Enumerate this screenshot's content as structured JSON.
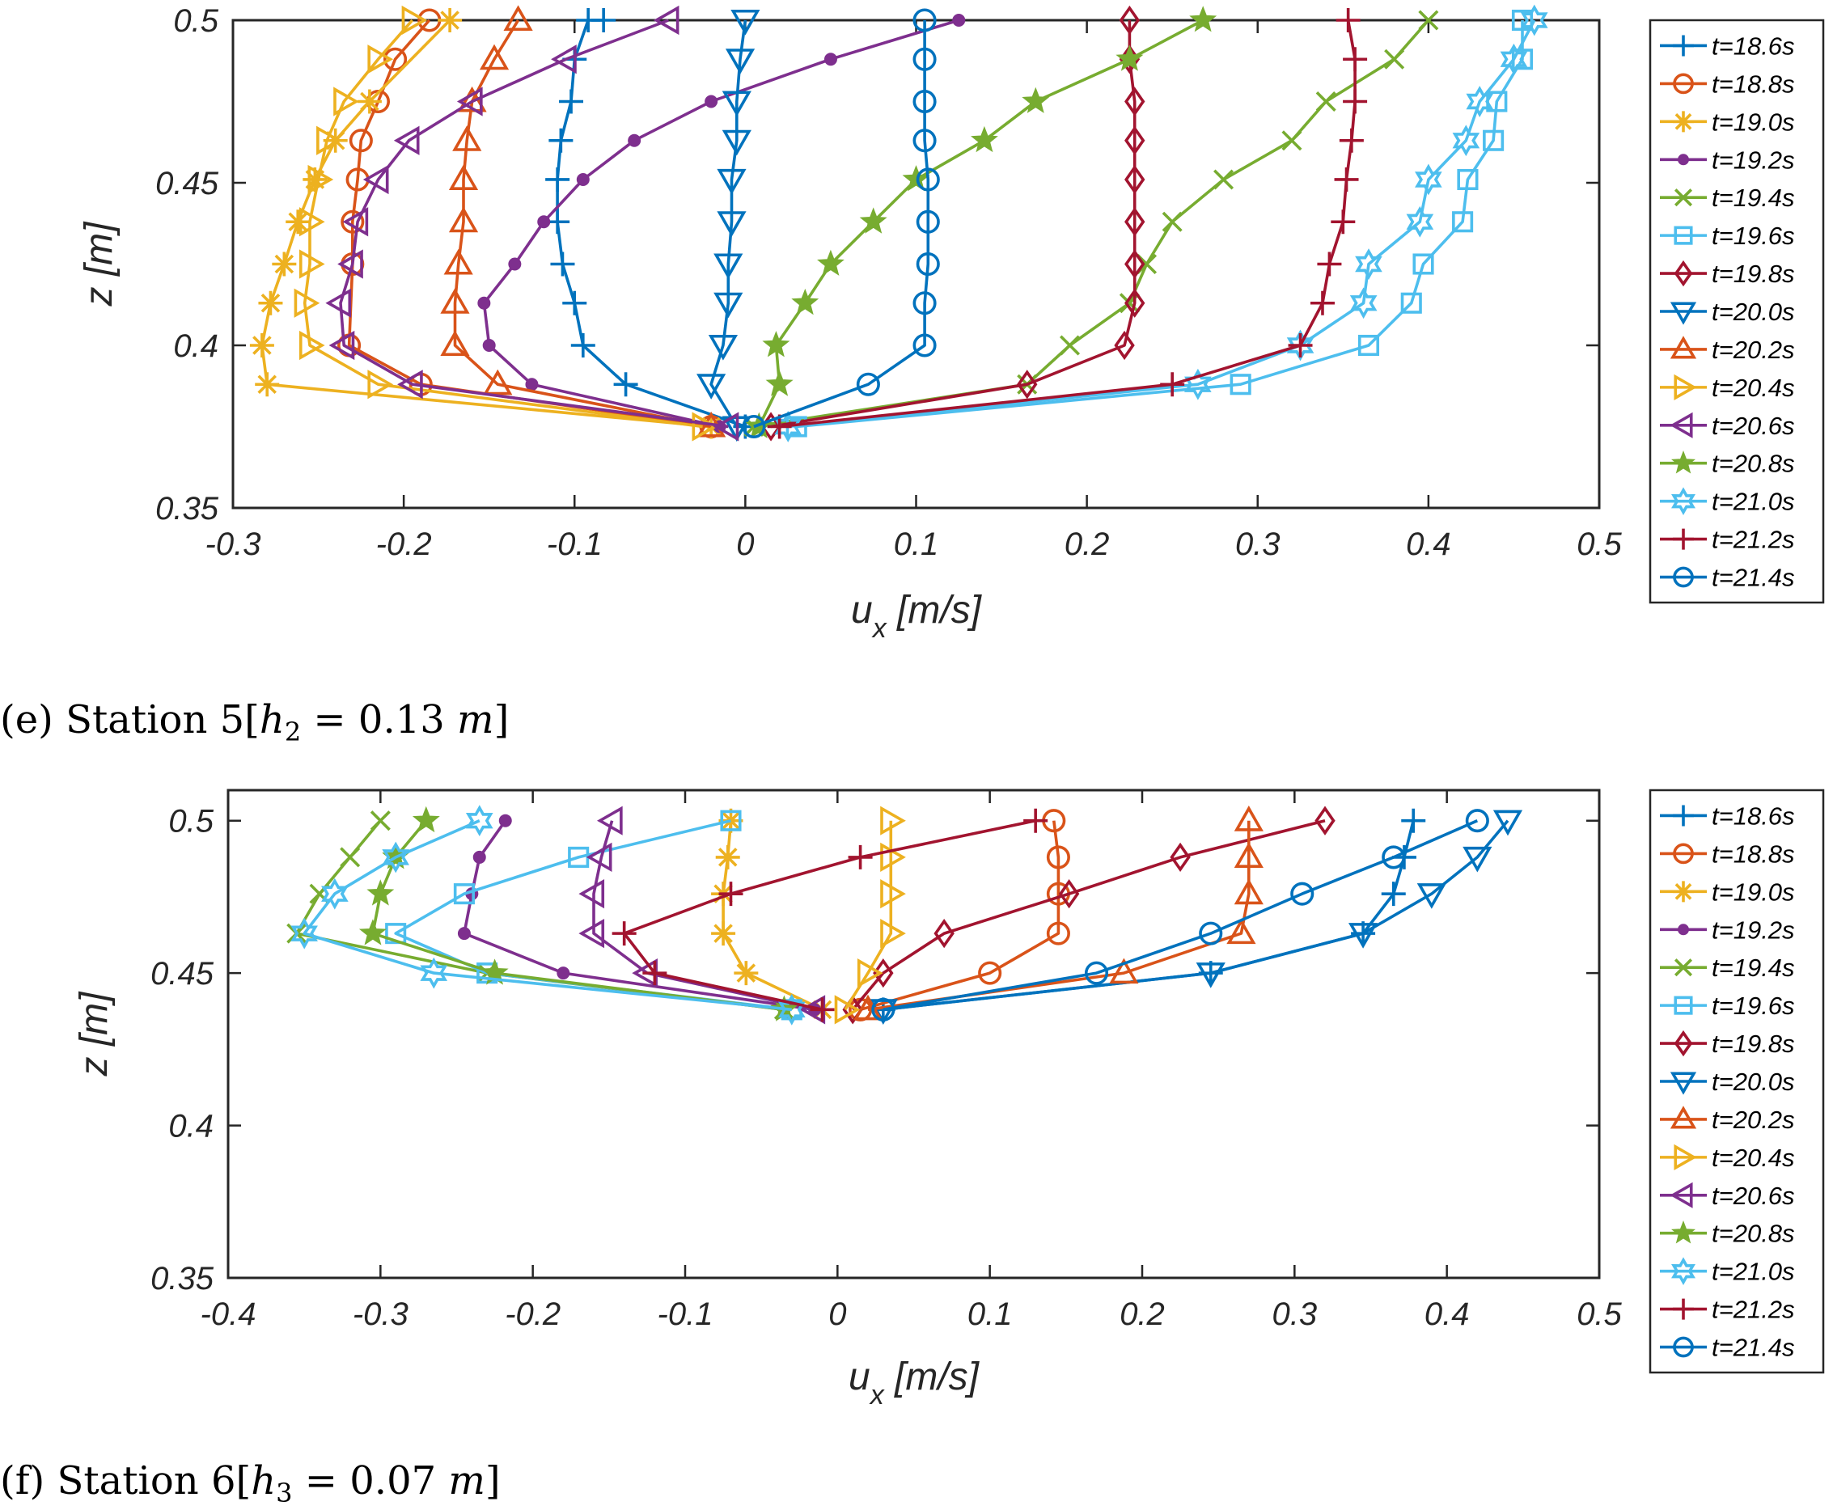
{
  "captions": [
    {
      "prefix": "(e) Station 5[",
      "var": "h",
      "sub": "2",
      "eq": " = 0.13 ",
      "unit": "m",
      "suffix": "]"
    },
    {
      "prefix": "(f) Station 6[",
      "var": "h",
      "sub": "3",
      "eq": " = 0.07 ",
      "unit": "m",
      "suffix": "]"
    }
  ],
  "chart_data": [
    {
      "type": "line",
      "xlabel": "u_x [m/s]",
      "ylabel": "z [m]",
      "xlim": [
        -0.3,
        0.5
      ],
      "ylim": [
        0.35,
        0.5
      ],
      "xticks": [
        "-0.3",
        "-0.2",
        "-0.1",
        "0",
        "0.1",
        "0.2",
        "0.3",
        "0.4",
        "0.5"
      ],
      "yticks": [
        "0.35",
        "0.4",
        "0.45",
        "0.5"
      ],
      "legend_position": "outside-right",
      "grid": false,
      "series": [
        {
          "name": "t=18.6s",
          "color": "#0072BD",
          "marker": "plus",
          "x": [
            0.0,
            -0.07,
            -0.095,
            -0.1,
            -0.107,
            -0.11,
            -0.11,
            -0.108,
            -0.102,
            -0.1,
            -0.092,
            -0.083
          ],
          "y": [
            0.375,
            0.388,
            0.4,
            0.413,
            0.425,
            0.438,
            0.451,
            0.463,
            0.475,
            0.488,
            0.5,
            0.5
          ]
        },
        {
          "name": "t=18.8s",
          "color": "#D95319",
          "marker": "circle",
          "x": [
            -0.02,
            -0.19,
            -0.232,
            -0.23,
            -0.23,
            -0.227,
            -0.225,
            -0.215,
            -0.205,
            -0.185
          ],
          "y": [
            0.375,
            0.388,
            0.4,
            0.425,
            0.438,
            0.451,
            0.463,
            0.475,
            0.488,
            0.5
          ]
        },
        {
          "name": "t=19.0s",
          "color": "#EDB120",
          "marker": "asterisk",
          "x": [
            -0.02,
            -0.28,
            -0.283,
            -0.278,
            -0.27,
            -0.262,
            -0.252,
            -0.24,
            -0.22,
            -0.173
          ],
          "y": [
            0.375,
            0.388,
            0.4,
            0.413,
            0.425,
            0.438,
            0.451,
            0.463,
            0.475,
            0.5
          ]
        },
        {
          "name": "t=19.2s",
          "color": "#7E2F8E",
          "marker": "dot",
          "x": [
            -0.015,
            -0.125,
            -0.15,
            -0.153,
            -0.135,
            -0.118,
            -0.095,
            -0.065,
            -0.02,
            0.05,
            0.125
          ],
          "y": [
            0.375,
            0.388,
            0.4,
            0.413,
            0.425,
            0.438,
            0.451,
            0.463,
            0.475,
            0.488,
            0.5
          ]
        },
        {
          "name": "t=19.4s",
          "color": "#77AC30",
          "marker": "x",
          "x": [
            0.005,
            0.165,
            0.19,
            0.225,
            0.235,
            0.25,
            0.28,
            0.32,
            0.34,
            0.38,
            0.4
          ],
          "y": [
            0.375,
            0.388,
            0.4,
            0.413,
            0.425,
            0.438,
            0.451,
            0.463,
            0.475,
            0.488,
            0.5
          ]
        },
        {
          "name": "t=19.6s",
          "color": "#4DBEEE",
          "marker": "square",
          "x": [
            0.03,
            0.29,
            0.365,
            0.39,
            0.397,
            0.42,
            0.423,
            0.438,
            0.44,
            0.455,
            0.455
          ],
          "y": [
            0.375,
            0.388,
            0.4,
            0.413,
            0.425,
            0.438,
            0.451,
            0.463,
            0.475,
            0.488,
            0.5
          ]
        },
        {
          "name": "t=19.8s",
          "color": "#A2142F",
          "marker": "diamond",
          "x": [
            0.015,
            0.165,
            0.222,
            0.228,
            0.228,
            0.228,
            0.228,
            0.228,
            0.228,
            0.225,
            0.225
          ],
          "y": [
            0.375,
            0.388,
            0.4,
            0.413,
            0.425,
            0.438,
            0.451,
            0.463,
            0.475,
            0.488,
            0.5
          ]
        },
        {
          "name": "t=20.0s",
          "color": "#0072BD",
          "marker": "triangle-down",
          "x": [
            -0.005,
            -0.02,
            -0.013,
            -0.01,
            -0.01,
            -0.008,
            -0.008,
            -0.005,
            -0.005,
            -0.003,
            0.0
          ],
          "y": [
            0.375,
            0.388,
            0.4,
            0.413,
            0.425,
            0.438,
            0.451,
            0.463,
            0.475,
            0.488,
            0.5
          ]
        },
        {
          "name": "t=20.2s",
          "color": "#D95319",
          "marker": "triangle-up",
          "x": [
            -0.02,
            -0.145,
            -0.17,
            -0.17,
            -0.168,
            -0.165,
            -0.165,
            -0.163,
            -0.16,
            -0.147,
            -0.133
          ],
          "y": [
            0.375,
            0.388,
            0.4,
            0.413,
            0.425,
            0.438,
            0.451,
            0.463,
            0.475,
            0.488,
            0.5
          ]
        },
        {
          "name": "t=20.4s",
          "color": "#EDB120",
          "marker": "triangle-right",
          "x": [
            -0.025,
            -0.215,
            -0.255,
            -0.258,
            -0.255,
            -0.255,
            -0.25,
            -0.245,
            -0.235,
            -0.215,
            -0.195
          ],
          "y": [
            0.375,
            0.388,
            0.4,
            0.413,
            0.425,
            0.438,
            0.451,
            0.463,
            0.475,
            0.488,
            0.5
          ]
        },
        {
          "name": "t=20.6s",
          "color": "#7E2F8E",
          "marker": "triangle-left",
          "x": [
            -0.01,
            -0.195,
            -0.235,
            -0.237,
            -0.23,
            -0.227,
            -0.215,
            -0.197,
            -0.16,
            -0.105,
            -0.045
          ],
          "y": [
            0.375,
            0.388,
            0.4,
            0.413,
            0.425,
            0.438,
            0.451,
            0.463,
            0.475,
            0.488,
            0.5
          ]
        },
        {
          "name": "t=20.8s",
          "color": "#77AC30",
          "marker": "star5",
          "x": [
            0.008,
            0.02,
            0.018,
            0.035,
            0.05,
            0.075,
            0.1,
            0.14,
            0.17,
            0.225,
            0.268
          ],
          "y": [
            0.375,
            0.388,
            0.4,
            0.413,
            0.425,
            0.438,
            0.451,
            0.463,
            0.475,
            0.488,
            0.5
          ]
        },
        {
          "name": "t=21.0s",
          "color": "#4DBEEE",
          "marker": "star6",
          "x": [
            0.025,
            0.265,
            0.325,
            0.362,
            0.365,
            0.395,
            0.4,
            0.422,
            0.43,
            0.45,
            0.462
          ],
          "y": [
            0.375,
            0.388,
            0.4,
            0.413,
            0.425,
            0.438,
            0.451,
            0.463,
            0.475,
            0.488,
            0.5
          ]
        },
        {
          "name": "t=21.2s",
          "color": "#A2142F",
          "marker": "plus",
          "x": [
            0.02,
            0.25,
            0.325,
            0.338,
            0.342,
            0.35,
            0.352,
            0.355,
            0.357,
            0.357,
            0.353
          ],
          "y": [
            0.375,
            0.388,
            0.4,
            0.413,
            0.425,
            0.438,
            0.451,
            0.463,
            0.475,
            0.488,
            0.5
          ]
        },
        {
          "name": "t=21.4s",
          "color": "#0072BD",
          "marker": "circle",
          "x": [
            0.005,
            0.072,
            0.105,
            0.105,
            0.107,
            0.107,
            0.107,
            0.105,
            0.105,
            0.105,
            0.105
          ],
          "y": [
            0.375,
            0.388,
            0.4,
            0.413,
            0.425,
            0.438,
            0.451,
            0.463,
            0.475,
            0.488,
            0.5
          ]
        }
      ]
    },
    {
      "type": "line",
      "xlabel": "u_x [m/s]",
      "ylabel": "z [m]",
      "xlim": [
        -0.4,
        0.5
      ],
      "ylim": [
        0.35,
        0.51
      ],
      "xticks": [
        "-0.4",
        "-0.3",
        "-0.2",
        "-0.1",
        "0",
        "0.1",
        "0.2",
        "0.3",
        "0.4",
        "0.5"
      ],
      "yticks": [
        "0.35",
        "0.4",
        "0.45",
        "0.5"
      ],
      "legend_position": "outside-right",
      "grid": false,
      "series": [
        {
          "name": "t=18.6s",
          "color": "#0072BD",
          "marker": "plus",
          "x": [
            0.03,
            0.245,
            0.345,
            0.365,
            0.372,
            0.378
          ],
          "y": [
            0.438,
            0.45,
            0.463,
            0.476,
            0.488,
            0.5
          ]
        },
        {
          "name": "t=18.8s",
          "color": "#D95319",
          "marker": "circle",
          "x": [
            0.015,
            0.1,
            0.145,
            0.145,
            0.145,
            0.142
          ],
          "y": [
            0.438,
            0.45,
            0.463,
            0.476,
            0.488,
            0.5
          ]
        },
        {
          "name": "t=19.0s",
          "color": "#EDB120",
          "marker": "asterisk",
          "x": [
            -0.01,
            -0.06,
            -0.075,
            -0.075,
            -0.072,
            -0.07
          ],
          "y": [
            0.438,
            0.45,
            0.463,
            0.476,
            0.488,
            0.5
          ]
        },
        {
          "name": "t=19.2s",
          "color": "#7E2F8E",
          "marker": "dot",
          "x": [
            -0.015,
            -0.18,
            -0.245,
            -0.24,
            -0.235,
            -0.218
          ],
          "y": [
            0.438,
            0.45,
            0.463,
            0.476,
            0.488,
            0.5
          ]
        },
        {
          "name": "t=19.4s",
          "color": "#77AC30",
          "marker": "x",
          "x": [
            -0.035,
            -0.23,
            -0.355,
            -0.34,
            -0.32,
            -0.3
          ],
          "y": [
            0.438,
            0.45,
            0.463,
            0.476,
            0.488,
            0.5
          ]
        },
        {
          "name": "t=19.6s",
          "color": "#4DBEEE",
          "marker": "square",
          "x": [
            -0.03,
            -0.23,
            -0.29,
            -0.245,
            -0.17,
            -0.07
          ],
          "y": [
            0.438,
            0.45,
            0.463,
            0.476,
            0.488,
            0.5
          ]
        },
        {
          "name": "t=19.8s",
          "color": "#A2142F",
          "marker": "diamond",
          "x": [
            0.01,
            0.03,
            0.07,
            0.152,
            0.225,
            0.32
          ],
          "y": [
            0.438,
            0.45,
            0.463,
            0.476,
            0.488,
            0.5
          ]
        },
        {
          "name": "t=20.0s",
          "color": "#0072BD",
          "marker": "triangle-down",
          "x": [
            0.03,
            0.245,
            0.345,
            0.39,
            0.42,
            0.44
          ],
          "y": [
            0.438,
            0.45,
            0.463,
            0.476,
            0.488,
            0.5
          ]
        },
        {
          "name": "t=20.2s",
          "color": "#D95319",
          "marker": "triangle-up",
          "x": [
            0.02,
            0.188,
            0.265,
            0.27,
            0.27,
            0.27
          ],
          "y": [
            0.438,
            0.45,
            0.463,
            0.476,
            0.488,
            0.5
          ]
        },
        {
          "name": "t=20.4s",
          "color": "#EDB120",
          "marker": "triangle-right",
          "x": [
            0.005,
            0.02,
            0.035,
            0.035,
            0.035,
            0.035
          ],
          "y": [
            0.438,
            0.45,
            0.463,
            0.476,
            0.488,
            0.5
          ]
        },
        {
          "name": "t=20.6s",
          "color": "#7E2F8E",
          "marker": "triangle-left",
          "x": [
            -0.015,
            -0.125,
            -0.16,
            -0.16,
            -0.155,
            -0.148
          ],
          "y": [
            0.438,
            0.45,
            0.463,
            0.476,
            0.488,
            0.5
          ]
        },
        {
          "name": "t=20.8s",
          "color": "#77AC30",
          "marker": "star5",
          "x": [
            -0.035,
            -0.225,
            -0.305,
            -0.3,
            -0.29,
            -0.27
          ],
          "y": [
            0.438,
            0.45,
            0.463,
            0.476,
            0.488,
            0.5
          ]
        },
        {
          "name": "t=21.0s",
          "color": "#4DBEEE",
          "marker": "star6",
          "x": [
            -0.03,
            -0.265,
            -0.35,
            -0.33,
            -0.29,
            -0.235
          ],
          "y": [
            0.438,
            0.45,
            0.463,
            0.476,
            0.488,
            0.5
          ]
        },
        {
          "name": "t=21.2s",
          "color": "#A2142F",
          "marker": "plus",
          "x": [
            -0.01,
            -0.12,
            -0.14,
            -0.07,
            0.015,
            0.13
          ],
          "y": [
            0.438,
            0.45,
            0.463,
            0.476,
            0.488,
            0.5
          ]
        },
        {
          "name": "t=21.4s",
          "color": "#0072BD",
          "marker": "circle",
          "x": [
            0.03,
            0.17,
            0.245,
            0.305,
            0.365,
            0.42
          ],
          "y": [
            0.438,
            0.45,
            0.463,
            0.476,
            0.488,
            0.5
          ]
        }
      ]
    }
  ]
}
